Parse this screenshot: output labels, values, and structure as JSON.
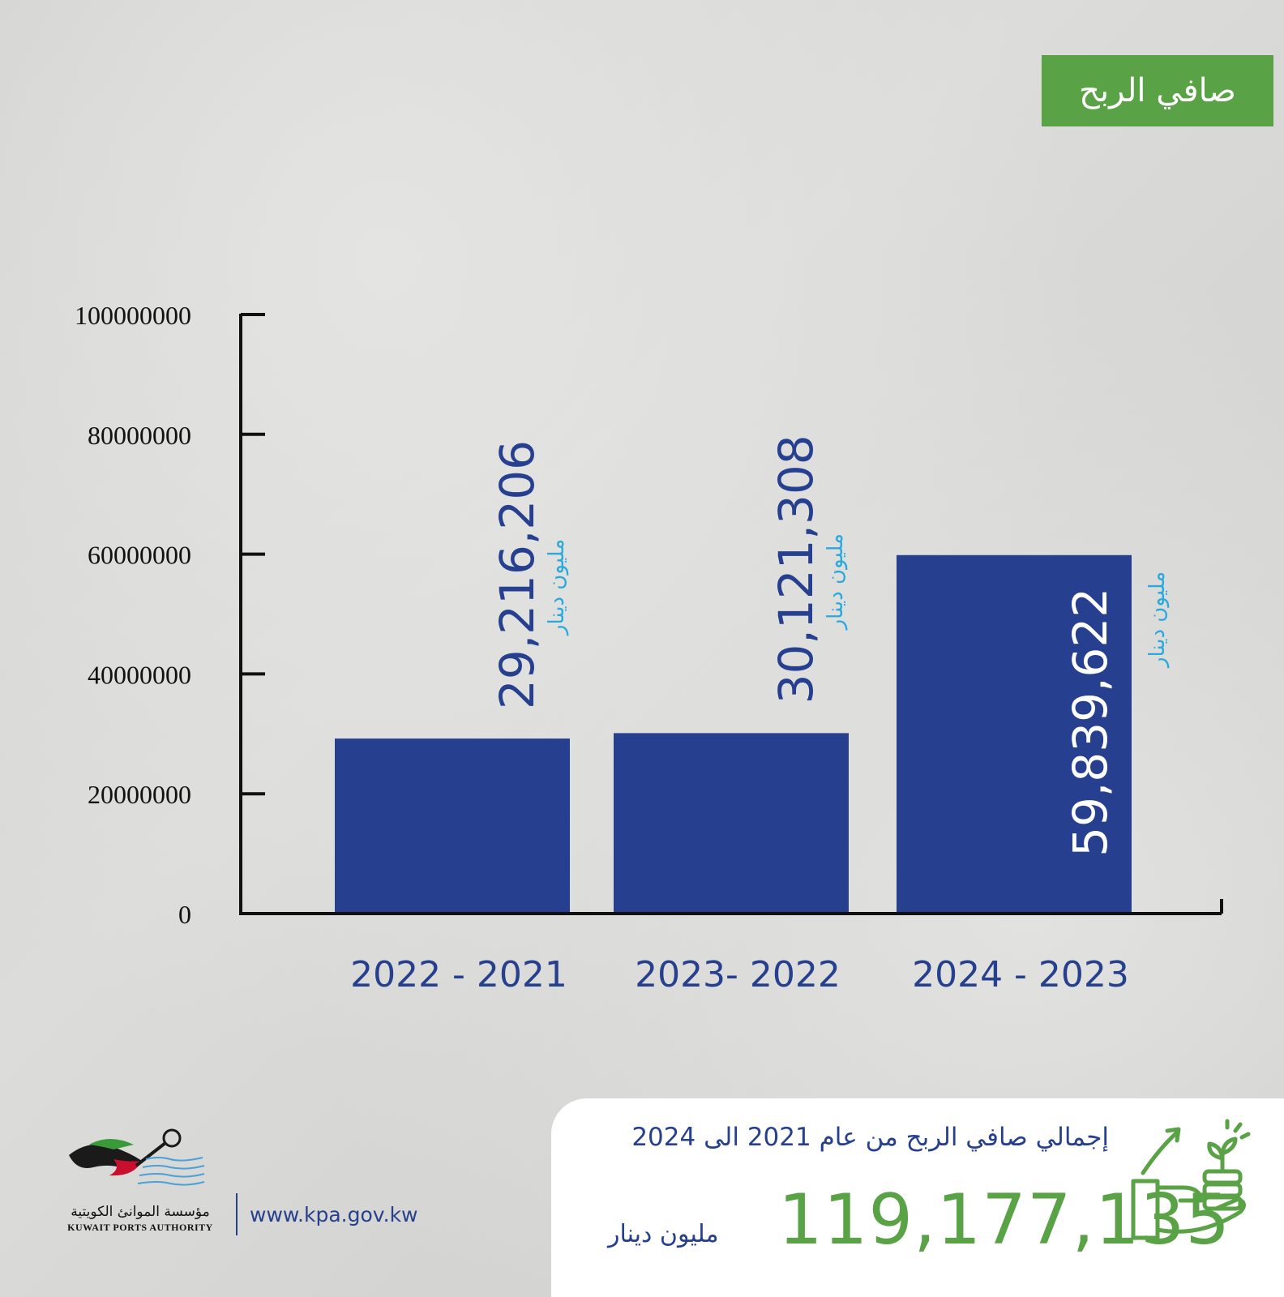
{
  "title": "صافي الربح",
  "chart_data": {
    "type": "bar",
    "categories": [
      "2022 - 2021",
      "2023- 2022",
      "2024 - 2023"
    ],
    "values": [
      29216206,
      30121308,
      59839622
    ],
    "value_labels": [
      "29,216,206",
      "30,121,308",
      "59,839,622"
    ],
    "unit_label": "مليون دينار",
    "ylim": [
      0,
      100000000
    ],
    "yticks": [
      "0",
      "20000000",
      "40000000",
      "60000000",
      "80000000",
      "100000000"
    ],
    "ytick_values": [
      0,
      20000000,
      40000000,
      60000000,
      80000000,
      100000000
    ],
    "bar_color": "#26408f",
    "unit_color": "#29a9dc",
    "title": "",
    "xlabel": "",
    "ylabel": ""
  },
  "total": {
    "caption": "إجمالي صافي الربح من عام 2021 الى 2024",
    "value": "119,177,135",
    "unit": "مليون دينار"
  },
  "footer": {
    "org_name_ar": "مؤسسة الموانئ الكويتية",
    "org_name_en": "KUWAIT PORTS AUTHORITY",
    "website": "www.kpa.gov.kw"
  },
  "colors": {
    "accent_green": "#5aa246",
    "navy": "#27408e",
    "cyan": "#29a9dc"
  },
  "icons": [
    "growth-hand-coins-icon",
    "kpa-logo-icon"
  ]
}
